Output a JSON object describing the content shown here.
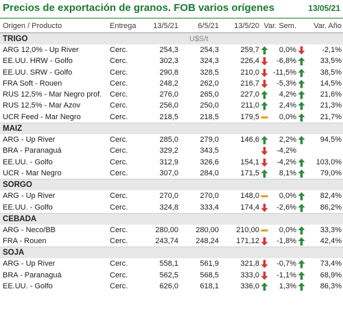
{
  "header": {
    "title": "Precios de exportación de granos. FOB varios orígenes",
    "date": "13/05/21"
  },
  "columns": {
    "origen": "Origen / Producto",
    "entrega": "Entrega",
    "d1": "13/5/21",
    "d2": "6/5/21",
    "d3": "13/5/20",
    "var_sem": "Var. Sem.",
    "var_ano": "Var. Año"
  },
  "colors": {
    "title": "#1b7a30",
    "up": "#2e8b3c",
    "down": "#d9372f",
    "flat": "#e3a21a",
    "section_bg": "#e7e7e7"
  },
  "sections": [
    {
      "name": "TRIGO",
      "unit": "U$S/t",
      "rows": [
        {
          "name": "ARG 12,0% - Up River",
          "entrega": "Cerc.",
          "v1": "254,3",
          "v2": "254,3",
          "v3": "259,7",
          "icon1": "up",
          "var_sem": "0,0%",
          "icon2": "down",
          "var_ano": "-2,1%"
        },
        {
          "name": "EE.UU. HRW - Golfo",
          "entrega": "Cerc.",
          "v1": "302,3",
          "v2": "324,3",
          "v3": "226,4",
          "icon1": "down",
          "var_sem": "-6,8%",
          "icon2": "up",
          "var_ano": "33,5%"
        },
        {
          "name": "EE.UU. SRW - Golfo",
          "entrega": "Cerc.",
          "v1": "290,8",
          "v2": "328,5",
          "v3": "210,0",
          "icon1": "down",
          "var_sem": "-11,5%",
          "icon2": "up",
          "var_ano": "38,5%"
        },
        {
          "name": "FRA Soft - Rouen",
          "entrega": "Cerc.",
          "v1": "248,2",
          "v2": "262,0",
          "v3": "216,7",
          "icon1": "down",
          "var_sem": "-5,3%",
          "icon2": "up",
          "var_ano": "14,5%"
        },
        {
          "name": "RUS 12,5% - Mar Negro prof.",
          "entrega": "Cerc.",
          "v1": "276,0",
          "v2": "265,0",
          "v3": "227,0",
          "icon1": "up",
          "var_sem": "4,2%",
          "icon2": "up",
          "var_ano": "21,6%"
        },
        {
          "name": "RUS 12,5% - Mar Azov",
          "entrega": "Cerc.",
          "v1": "256,0",
          "v2": "250,0",
          "v3": "211,0",
          "icon1": "up",
          "var_sem": "2,4%",
          "icon2": "up",
          "var_ano": "21,3%"
        },
        {
          "name": "UCR Feed - Mar Negro",
          "entrega": "Cerc.",
          "v1": "218,5",
          "v2": "218,5",
          "v3": "179,5",
          "icon1": "flat",
          "var_sem": "0,0%",
          "icon2": "up",
          "var_ano": "21,7%"
        }
      ]
    },
    {
      "name": "MAIZ",
      "unit": "",
      "rows": [
        {
          "name": "ARG - Up River",
          "entrega": "Cerc.",
          "v1": "285,0",
          "v2": "279,0",
          "v3": "146,6",
          "icon1": "up",
          "var_sem": "2,2%",
          "icon2": "up",
          "var_ano": "94,5%"
        },
        {
          "name": "BRA - Paranaguá",
          "entrega": "Cerc.",
          "v1": "329,2",
          "v2": "343,5",
          "v3": "",
          "icon1": "down",
          "var_sem": "-4,2%",
          "icon2": "",
          "var_ano": ""
        },
        {
          "name": "EE.UU. - Golfo",
          "entrega": "Cerc.",
          "v1": "312,9",
          "v2": "326,6",
          "v3": "154,1",
          "icon1": "down",
          "var_sem": "-4,2%",
          "icon2": "up",
          "var_ano": "103,0%"
        },
        {
          "name": "UCR - Mar Negro",
          "entrega": "Cerc.",
          "v1": "307,0",
          "v2": "284,0",
          "v3": "171,5",
          "icon1": "up",
          "var_sem": "8,1%",
          "icon2": "up",
          "var_ano": "79,0%"
        }
      ]
    },
    {
      "name": "SORGO",
      "unit": "",
      "rows": [
        {
          "name": "ARG - Up River",
          "entrega": "Cerc.",
          "v1": "270,0",
          "v2": "270,0",
          "v3": "148,0",
          "icon1": "flat",
          "var_sem": "0,0%",
          "icon2": "up",
          "var_ano": "82,4%"
        },
        {
          "name": "EE.UU. - Golfo",
          "entrega": "Cerc.",
          "v1": "324,8",
          "v2": "333,4",
          "v3": "174,4",
          "icon1": "down",
          "var_sem": "-2,6%",
          "icon2": "up",
          "var_ano": "86,2%"
        }
      ]
    },
    {
      "name": "CEBADA",
      "unit": "",
      "rows": [
        {
          "name": "ARG - Neco/BB",
          "entrega": "Cerc.",
          "v1": "280,00",
          "v2": "280,00",
          "v3": "210,00",
          "icon1": "flat",
          "var_sem": "0,0%",
          "icon2": "up",
          "var_ano": "33,3%"
        },
        {
          "name": "FRA - Rouen",
          "entrega": "Cerc.",
          "v1": "243,74",
          "v2": "248,24",
          "v3": "171,12",
          "icon1": "down",
          "var_sem": "-1,8%",
          "icon2": "up",
          "var_ano": "42,4%"
        }
      ]
    },
    {
      "name": "SOJA",
      "unit": "",
      "rows": [
        {
          "name": "ARG - Up River",
          "entrega": "Cerc.",
          "v1": "558,1",
          "v2": "561,9",
          "v3": "321,8",
          "icon1": "down",
          "var_sem": "-0,7%",
          "icon2": "up",
          "var_ano": "73,4%"
        },
        {
          "name": "BRA - Paranaguá",
          "entrega": "Cerc.",
          "v1": "562,5",
          "v2": "568,5",
          "v3": "333,0",
          "icon1": "down",
          "var_sem": "-1,1%",
          "icon2": "up",
          "var_ano": "68,9%"
        },
        {
          "name": "EE.UU. - Golfo",
          "entrega": "Cerc.",
          "v1": "626,0",
          "v2": "618,1",
          "v3": "336,0",
          "icon1": "up",
          "var_sem": "1,3%",
          "icon2": "up",
          "var_ano": "86,3%"
        }
      ]
    }
  ]
}
